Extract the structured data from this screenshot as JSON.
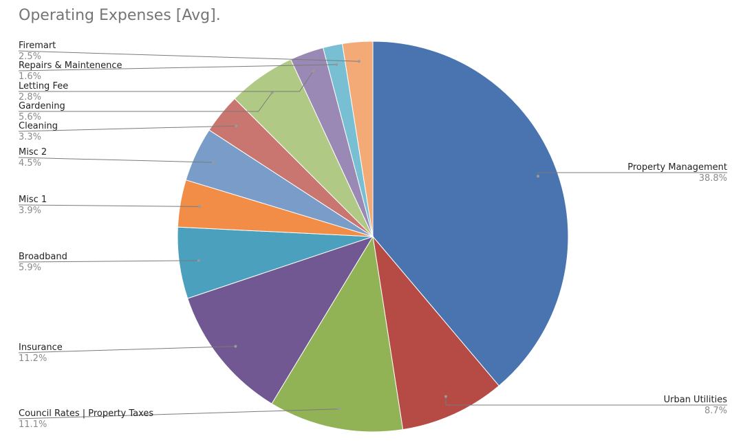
{
  "chart_data": {
    "type": "pie",
    "title": "Operating Expenses [Avg].",
    "start_angle_deg": 0,
    "direction": "clockwise",
    "slices": [
      {
        "label": "Property Management",
        "value": 38.8,
        "pct_label": "38.8%",
        "color": "#4a74b0"
      },
      {
        "label": "Urban Utilities",
        "value": 8.7,
        "pct_label": "8.7%",
        "color": "#b64a45"
      },
      {
        "label": "Council Rates | Property Taxes",
        "value": 11.1,
        "pct_label": "11.1%",
        "color": "#92b256"
      },
      {
        "label": "Insurance",
        "value": 11.2,
        "pct_label": "11.2%",
        "color": "#725892"
      },
      {
        "label": "Broadband",
        "value": 5.9,
        "pct_label": "5.9%",
        "color": "#4aa0bd"
      },
      {
        "label": "Misc 1",
        "value": 3.9,
        "pct_label": "3.9%",
        "color": "#f18d46"
      },
      {
        "label": "Misc 2",
        "value": 4.5,
        "pct_label": "4.5%",
        "color": "#7a9cc9"
      },
      {
        "label": "Cleaning",
        "value": 3.3,
        "pct_label": "3.3%",
        "color": "#c97671"
      },
      {
        "label": "Gardening",
        "value": 5.6,
        "pct_label": "5.6%",
        "color": "#b0c985"
      },
      {
        "label": "Letting Fee",
        "value": 2.8,
        "pct_label": "2.8%",
        "color": "#9b89b5"
      },
      {
        "label": "Repairs & Maintenence",
        "value": 1.6,
        "pct_label": "1.6%",
        "color": "#78bfd4"
      },
      {
        "label": "Firemart",
        "value": 2.5,
        "pct_label": "2.5%",
        "color": "#f4aa76"
      }
    ]
  }
}
